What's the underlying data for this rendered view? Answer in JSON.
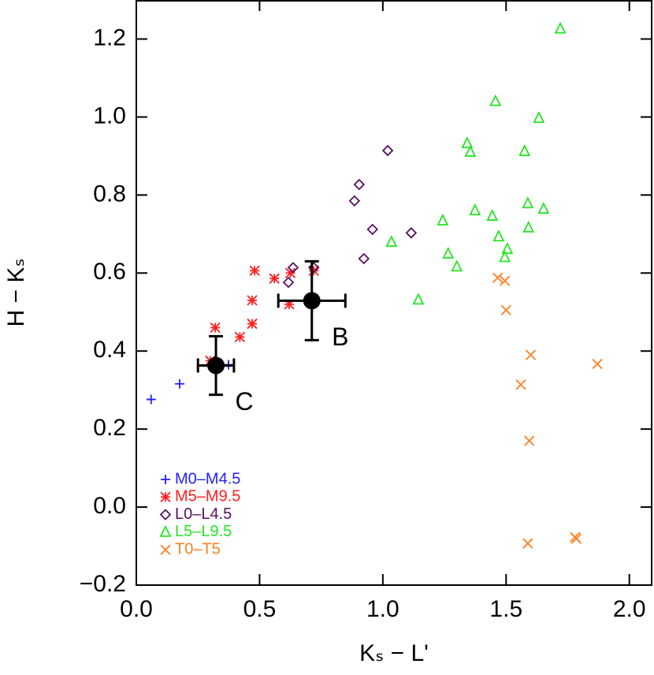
{
  "chart_data": {
    "type": "scatter",
    "x_label": "Kₛ − L'",
    "y_label": "H − Kₛ",
    "xlim": [
      0,
      2.1
    ],
    "ylim": [
      -0.2,
      1.3
    ],
    "xticks": [
      {
        "value": 0,
        "label": "0.0"
      },
      {
        "value": 0.5,
        "label": "0.5"
      },
      {
        "value": 1,
        "label": "1.0"
      },
      {
        "value": 1.5,
        "label": "1.5"
      },
      {
        "value": 2,
        "label": "2.0"
      }
    ],
    "yticks": [
      {
        "value": -0.2,
        "label": "−0.2"
      },
      {
        "value": 0,
        "label": "0.0"
      },
      {
        "value": 0.2,
        "label": "0.2"
      },
      {
        "value": 0.4,
        "label": "0.4"
      },
      {
        "value": 0.6,
        "label": "0.6"
      },
      {
        "value": 0.8,
        "label": "0.8"
      },
      {
        "value": 1,
        "label": "1.0"
      },
      {
        "value": 1.2,
        "label": "1.2"
      }
    ],
    "legend": "lower left",
    "series": [
      {
        "name": "M0–M4.5",
        "color": "#1f1fff",
        "marker": "plus",
        "x": [
          0.06,
          0.176,
          0.374
        ],
        "values": [
          0.276,
          0.316,
          0.365
        ]
      },
      {
        "name": "M5–M9.5",
        "color": "#ff1f1f",
        "marker": "asterisk",
        "x": [
          0.32,
          0.3,
          0.42,
          0.47,
          0.47,
          0.48,
          0.56,
          0.62,
          0.625,
          0.72
        ],
        "values": [
          0.46,
          0.375,
          0.436,
          0.47,
          0.53,
          0.606,
          0.586,
          0.52,
          0.6,
          0.606
        ]
      },
      {
        "name": "L0–L4.5",
        "color": "#5a1060",
        "marker": "diamond",
        "x": [
          1.02,
          0.904,
          0.885,
          0.958,
          1.115,
          0.923,
          0.636,
          0.617,
          0.72
        ],
        "values": [
          0.914,
          0.827,
          0.785,
          0.712,
          0.703,
          0.637,
          0.614,
          0.576,
          0.614
        ]
      },
      {
        "name": "L5–L9.5",
        "color": "#22e622",
        "marker": "triangle",
        "x": [
          1.72,
          1.457,
          1.633,
          1.342,
          1.355,
          1.575,
          1.374,
          1.243,
          1.444,
          1.588,
          1.652,
          1.591,
          1.47,
          1.035,
          1.505,
          1.495,
          1.265,
          1.3,
          1.144
        ],
        "values": [
          1.226,
          1.04,
          0.997,
          0.932,
          0.91,
          0.912,
          0.76,
          0.734,
          0.746,
          0.778,
          0.764,
          0.716,
          0.693,
          0.679,
          0.661,
          0.64,
          0.649,
          0.616,
          0.531
        ]
      },
      {
        "name": "T0–T5",
        "color": "#ff7f1f",
        "marker": "x",
        "x": [
          1.466,
          1.495,
          1.5,
          1.6,
          1.87,
          1.56,
          1.594,
          1.588,
          1.78,
          1.785
        ],
        "values": [
          0.588,
          0.58,
          0.505,
          0.39,
          0.367,
          0.314,
          0.17,
          -0.093,
          -0.077,
          -0.081
        ]
      }
    ],
    "annotations": [
      {
        "label": "B",
        "x": 0.712,
        "y": 0.529,
        "x_err": 0.136,
        "y_err": 0.101
      },
      {
        "label": "C",
        "x": 0.323,
        "y": 0.363,
        "x_err": 0.073,
        "y_err": 0.075
      }
    ]
  }
}
